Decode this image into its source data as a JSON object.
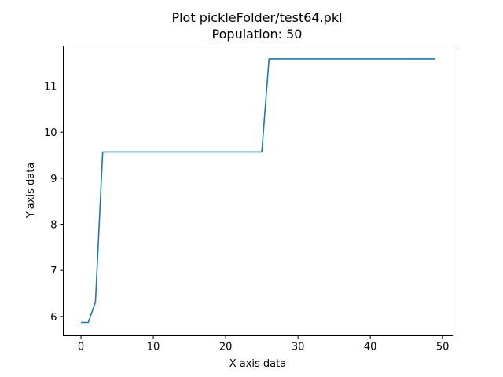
{
  "chart_data": {
    "type": "line",
    "title": "Plot pickleFolder/test64.pkl",
    "subtitle": "Population: 50",
    "xlabel": "X-axis data",
    "ylabel": "Y-axis data",
    "xlim": [
      -2.45,
      51.45
    ],
    "ylim": [
      5.58,
      11.87
    ],
    "xticks": [
      0,
      10,
      20,
      30,
      40,
      50
    ],
    "yticks": [
      6,
      7,
      8,
      9,
      10,
      11
    ],
    "grid": false,
    "legend": "none",
    "series": [
      {
        "color": "#1f77b4",
        "x": [
          0,
          1,
          2,
          3,
          4,
          5,
          6,
          7,
          8,
          9,
          10,
          11,
          12,
          13,
          14,
          15,
          16,
          17,
          18,
          19,
          20,
          21,
          22,
          23,
          24,
          25,
          26,
          27,
          28,
          29,
          30,
          31,
          32,
          33,
          34,
          35,
          36,
          37,
          38,
          39,
          40,
          41,
          42,
          43,
          44,
          45,
          46,
          47,
          48,
          49
        ],
        "y": [
          5.87,
          5.87,
          6.31,
          9.57,
          9.57,
          9.57,
          9.57,
          9.57,
          9.57,
          9.57,
          9.57,
          9.57,
          9.57,
          9.57,
          9.57,
          9.57,
          9.57,
          9.57,
          9.57,
          9.57,
          9.57,
          9.57,
          9.57,
          9.57,
          9.57,
          9.57,
          11.59,
          11.59,
          11.59,
          11.59,
          11.59,
          11.59,
          11.59,
          11.59,
          11.59,
          11.59,
          11.59,
          11.59,
          11.59,
          11.59,
          11.59,
          11.59,
          11.59,
          11.59,
          11.59,
          11.59,
          11.59,
          11.59,
          11.59,
          11.59
        ]
      }
    ]
  }
}
